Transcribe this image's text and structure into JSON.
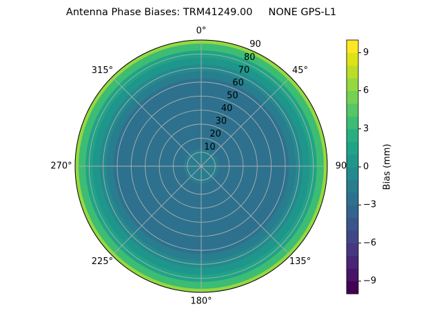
{
  "chart_data": {
    "type": "polar-contour",
    "title": "Antenna Phase Biases: TRM41249.00     NONE GPS-L1",
    "x": [
      0,
      5,
      10,
      15,
      20,
      30,
      40,
      50,
      60,
      65,
      70,
      75,
      80,
      85,
      90
    ],
    "values": [
      -1.5,
      -1.5,
      -1.8,
      -2.2,
      -2.5,
      -2.6,
      -2.7,
      -2.6,
      -2.3,
      -1.8,
      -1,
      0,
      1.5,
      3.5,
      6.5
    ],
    "rlim": [
      0,
      90
    ],
    "rticks": [
      10,
      20,
      30,
      40,
      50,
      60,
      70,
      80,
      90
    ],
    "thetaticks": [
      {
        "value": 0,
        "label": "0°"
      },
      {
        "value": 45,
        "label": "45°"
      },
      {
        "value": 90,
        "label": "90"
      },
      {
        "value": 135,
        "label": "135°"
      },
      {
        "value": 180,
        "label": "180°"
      },
      {
        "value": 225,
        "label": "225°"
      },
      {
        "value": 270,
        "label": "270°"
      },
      {
        "value": 315,
        "label": "315°"
      }
    ],
    "clim": [
      -10,
      10
    ],
    "cticks": [
      {
        "value": -9,
        "label": "−9"
      },
      {
        "value": -6,
        "label": "−6"
      },
      {
        "value": -3,
        "label": "−3"
      },
      0,
      3,
      6,
      9
    ],
    "colorbar_label": "Bias (mm)",
    "colors": [
      "#440154",
      "#481467",
      "#482576",
      "#453781",
      "#3f4788",
      "#39558c",
      "#32648e",
      "#2d718e",
      "#287d8e",
      "#238a8d",
      "#1f968b",
      "#20a386",
      "#29af7f",
      "#3dbc74",
      "#56c667",
      "#75d054",
      "#95d840",
      "#bade28",
      "#dde318",
      "#fde725"
    ],
    "grid": true
  }
}
